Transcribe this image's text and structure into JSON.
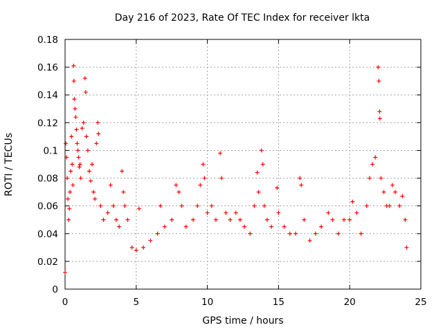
{
  "chart_data": {
    "type": "scatter",
    "title": "Day 216 of 2023, Rate Of TEC Index for receiver lkta",
    "xlabel": "GPS time / hours",
    "ylabel": "ROTI / TECUs",
    "xlim": [
      0,
      25
    ],
    "ylim": [
      0,
      0.18
    ],
    "x_ticks": [
      "0",
      "5",
      "10",
      "15",
      "20",
      "25"
    ],
    "y_ticks": [
      "0",
      "0.02",
      "0.04",
      "0.06",
      "0.08",
      "0.1",
      "0.12",
      "0.14",
      "0.16",
      "0.18"
    ],
    "grid": true,
    "marker": "+",
    "series": [
      {
        "color": "#ff0000",
        "points": [
          [
            0.0,
            0.012
          ],
          [
            0.05,
            0.105
          ],
          [
            0.1,
            0.095
          ],
          [
            0.15,
            0.08
          ],
          [
            0.2,
            0.065
          ],
          [
            0.25,
            0.05
          ],
          [
            0.3,
            0.058
          ],
          [
            0.35,
            0.07
          ],
          [
            0.4,
            0.085
          ],
          [
            0.45,
            0.11
          ],
          [
            0.5,
            0.09
          ],
          [
            0.55,
            0.075
          ],
          [
            0.6,
            0.161
          ],
          [
            0.62,
            0.15
          ],
          [
            0.65,
            0.137
          ],
          [
            0.7,
            0.13
          ],
          [
            0.75,
            0.124
          ],
          [
            0.8,
            0.115
          ],
          [
            0.85,
            0.105
          ],
          [
            0.9,
            0.1
          ],
          [
            0.95,
            0.095
          ],
          [
            1.0,
            0.088
          ],
          [
            1.05,
            0.09
          ],
          [
            1.1,
            0.08
          ],
          [
            1.2,
            0.116
          ],
          [
            1.3,
            0.12
          ],
          [
            1.4,
            0.152
          ],
          [
            1.45,
            0.142
          ],
          [
            1.5,
            0.11
          ],
          [
            1.6,
            0.1
          ],
          [
            1.7,
            0.085
          ],
          [
            1.8,
            0.078
          ],
          [
            1.9,
            0.09
          ],
          [
            2.0,
            0.07
          ],
          [
            2.1,
            0.065
          ],
          [
            2.2,
            0.105
          ],
          [
            2.3,
            0.12
          ],
          [
            2.35,
            0.112
          ],
          [
            2.5,
            0.06
          ],
          [
            2.7,
            0.05
          ],
          [
            3.0,
            0.055
          ],
          [
            3.2,
            0.075
          ],
          [
            3.4,
            0.06
          ],
          [
            3.6,
            0.05
          ],
          [
            3.8,
            0.045
          ],
          [
            4.0,
            0.085
          ],
          [
            4.1,
            0.07
          ],
          [
            4.2,
            0.06
          ],
          [
            4.4,
            0.05
          ],
          [
            4.7,
            0.03
          ],
          [
            5.0,
            0.028
          ],
          [
            5.2,
            0.058
          ],
          [
            5.5,
            0.03
          ],
          [
            6.0,
            0.035
          ],
          [
            6.5,
            0.04
          ],
          [
            6.7,
            0.06
          ],
          [
            7.0,
            0.045
          ],
          [
            7.5,
            0.05
          ],
          [
            7.8,
            0.075
          ],
          [
            8.0,
            0.07
          ],
          [
            8.2,
            0.06
          ],
          [
            8.5,
            0.045
          ],
          [
            9.0,
            0.05
          ],
          [
            9.3,
            0.06
          ],
          [
            9.5,
            0.075
          ],
          [
            9.7,
            0.09
          ],
          [
            9.8,
            0.08
          ],
          [
            10.0,
            0.055
          ],
          [
            10.3,
            0.06
          ],
          [
            10.6,
            0.05
          ],
          [
            10.9,
            0.098
          ],
          [
            11.0,
            0.08
          ],
          [
            11.3,
            0.055
          ],
          [
            11.6,
            0.05
          ],
          [
            12.0,
            0.055
          ],
          [
            12.3,
            0.05
          ],
          [
            12.6,
            0.045
          ],
          [
            13.0,
            0.04
          ],
          [
            13.3,
            0.06
          ],
          [
            13.5,
            0.084
          ],
          [
            13.6,
            0.07
          ],
          [
            13.8,
            0.1
          ],
          [
            13.9,
            0.09
          ],
          [
            14.0,
            0.06
          ],
          [
            14.2,
            0.05
          ],
          [
            14.5,
            0.045
          ],
          [
            14.9,
            0.073
          ],
          [
            15.0,
            0.055
          ],
          [
            15.4,
            0.045
          ],
          [
            15.8,
            0.04
          ],
          [
            16.2,
            0.04
          ],
          [
            16.5,
            0.08
          ],
          [
            16.6,
            0.075
          ],
          [
            16.8,
            0.05
          ],
          [
            17.2,
            0.035
          ],
          [
            17.6,
            0.04
          ],
          [
            18.0,
            0.045
          ],
          [
            18.5,
            0.055
          ],
          [
            18.8,
            0.05
          ],
          [
            19.2,
            0.04
          ],
          [
            19.6,
            0.05
          ],
          [
            20.0,
            0.05
          ],
          [
            20.2,
            0.063
          ],
          [
            20.5,
            0.055
          ],
          [
            20.8,
            0.04
          ],
          [
            21.2,
            0.06
          ],
          [
            21.4,
            0.08
          ],
          [
            21.6,
            0.09
          ],
          [
            21.8,
            0.095
          ],
          [
            22.0,
            0.16
          ],
          [
            22.05,
            0.15
          ],
          [
            22.1,
            0.128
          ],
          [
            22.12,
            0.123
          ],
          [
            22.2,
            0.08
          ],
          [
            22.4,
            0.07
          ],
          [
            22.6,
            0.06
          ],
          [
            22.8,
            0.06
          ],
          [
            23.0,
            0.075
          ],
          [
            23.2,
            0.07
          ],
          [
            23.5,
            0.06
          ],
          [
            23.7,
            0.067
          ],
          [
            23.9,
            0.05
          ],
          [
            24.0,
            0.03
          ]
        ]
      }
    ]
  }
}
